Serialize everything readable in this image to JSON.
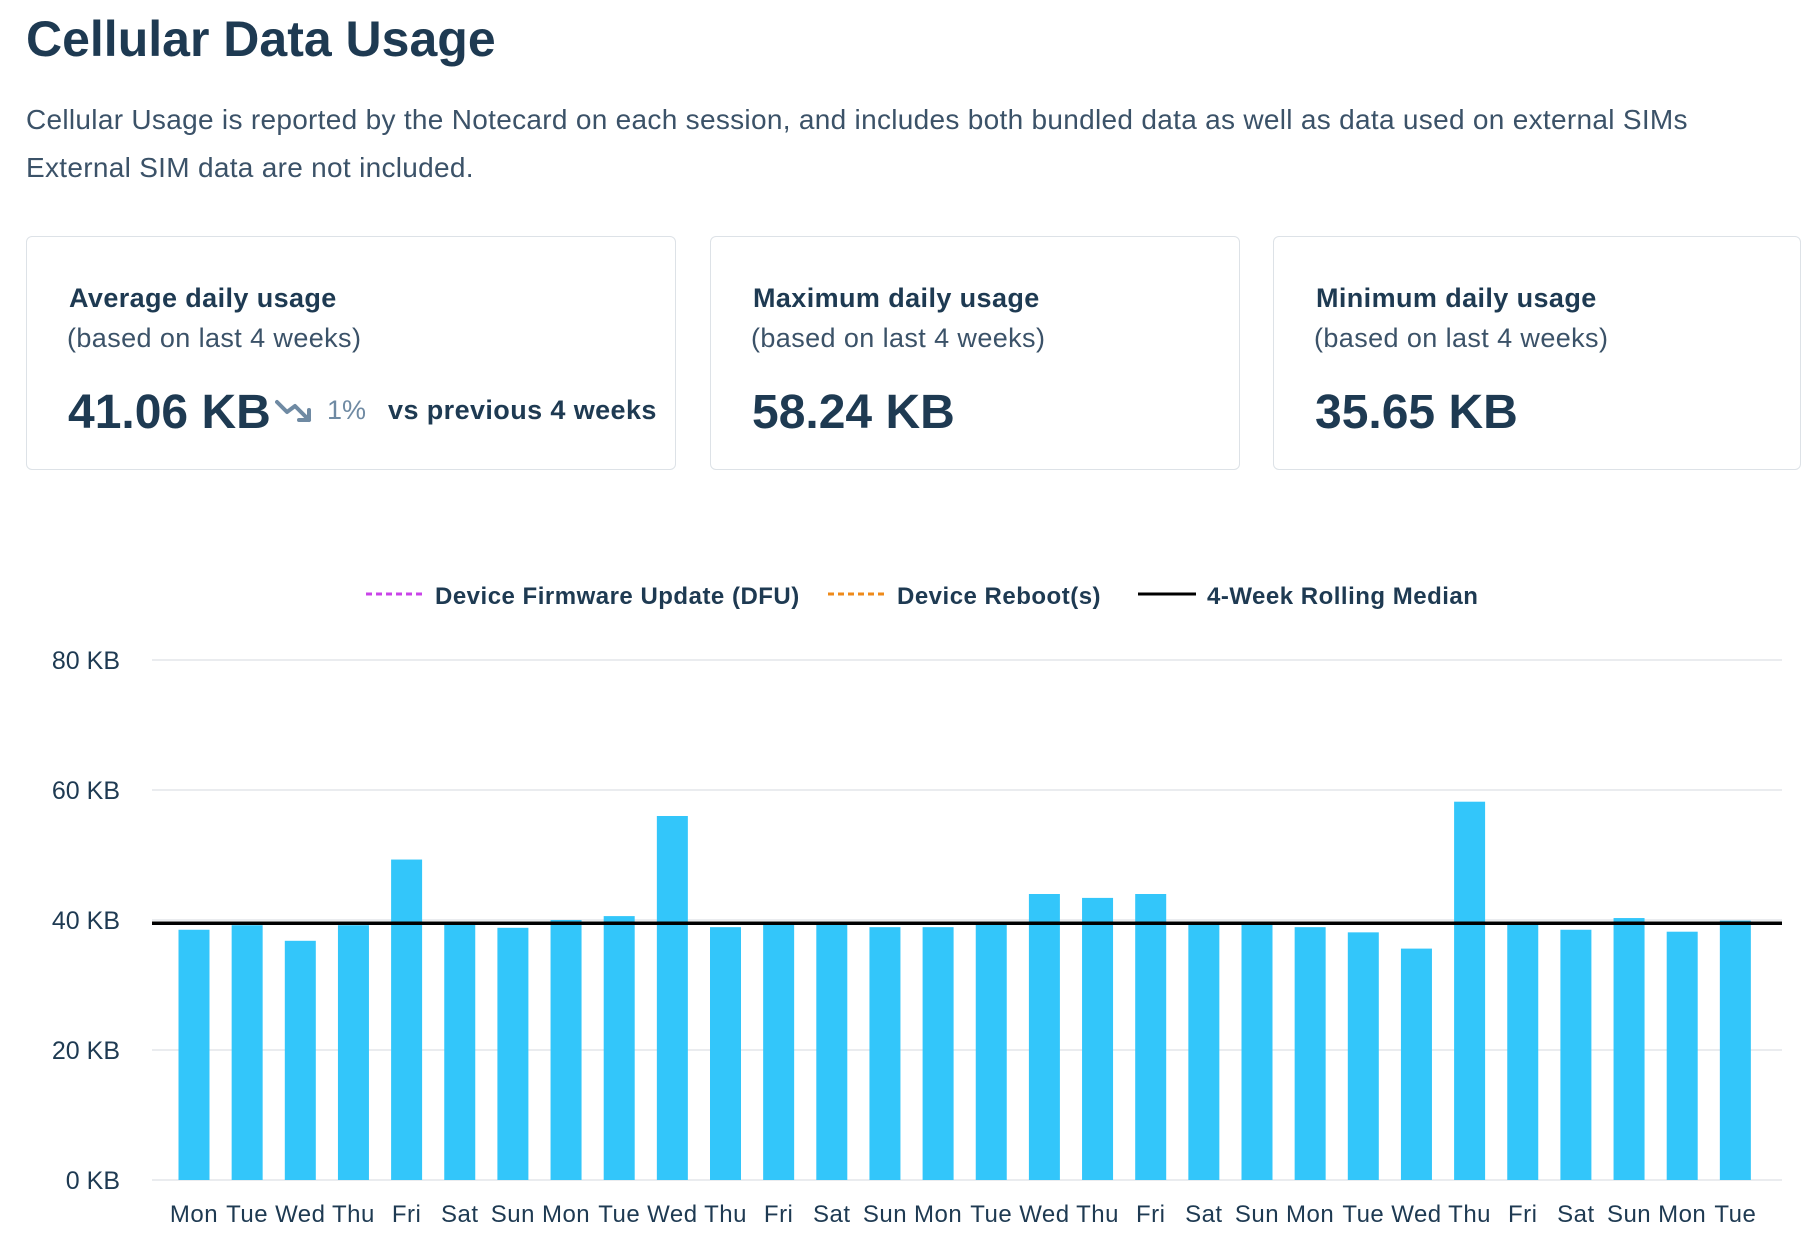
{
  "header": {
    "title": "Cellular Data Usage",
    "description": "Cellular Usage is reported by the Notecard on each session, and includes both bundled data as well as data used on external SIMs External SIM data are not included."
  },
  "cards": [
    {
      "label": "Average daily usage",
      "sub": "(based on last 4 weeks)",
      "value": "41.06 KB",
      "trend_pct": "1%",
      "trend_text": "vs previous 4 weeks"
    },
    {
      "label": "Maximum daily usage",
      "sub": "(based on last 4 weeks)",
      "value": "58.24 KB"
    },
    {
      "label": "Minimum daily usage",
      "sub": "(based on last 4 weeks)",
      "value": "35.65 KB"
    }
  ],
  "colors": {
    "bar": "#33c6fa",
    "median": "#000000",
    "dfu": "#c944e8",
    "reboot": "#ee8a1a",
    "grid": "#e3e6ea",
    "text": "#1e3a52",
    "trend_icon": "#6f8aa3"
  },
  "chart_data": {
    "type": "bar",
    "categories": [
      "Mon",
      "Tue",
      "Wed",
      "Thu",
      "Fri",
      "Sat",
      "Sun",
      "Mon",
      "Tue",
      "Wed",
      "Thu",
      "Fri",
      "Sat",
      "Sun",
      "Mon",
      "Tue",
      "Wed",
      "Thu",
      "Fri",
      "Sat",
      "Sun",
      "Mon",
      "Tue",
      "Wed",
      "Thu",
      "Fri",
      "Sat",
      "Sun",
      "Mon",
      "Tue"
    ],
    "series": [
      {
        "values": [
          38.5,
          39.2,
          36.8,
          39.2,
          49.3,
          39.3,
          38.8,
          40.0,
          40.6,
          56.0,
          38.9,
          39.4,
          39.3,
          38.9,
          38.9,
          39.4,
          44.0,
          43.4,
          44.0,
          39.3,
          39.4,
          38.9,
          38.1,
          35.6,
          58.2,
          39.3,
          38.5,
          40.3,
          38.2,
          39.9
        ]
      }
    ],
    "median": 39.5,
    "legend": [
      "Device Firmware Update (DFU)",
      "Device Reboot(s)",
      "4-Week Rolling Median"
    ],
    "legend_position": "top-center",
    "ylim": [
      0,
      80
    ],
    "yticks": [
      0,
      20,
      40,
      60,
      80
    ],
    "ytick_labels": [
      "0 KB",
      "20 KB",
      "40 KB",
      "60 KB",
      "80 KB"
    ],
    "grid": true
  }
}
